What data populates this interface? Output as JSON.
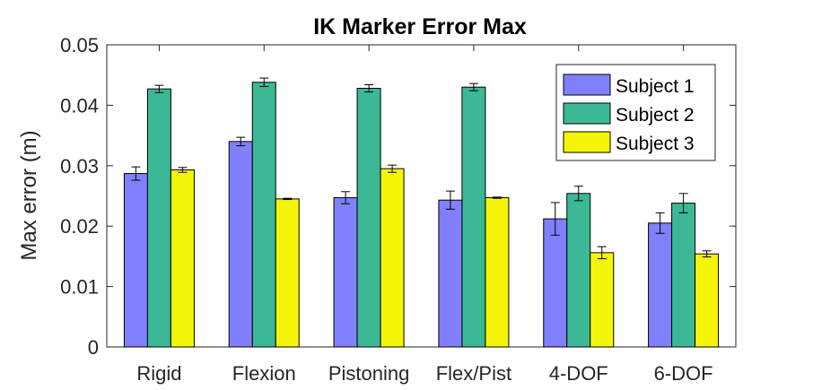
{
  "chart_data": {
    "type": "bar",
    "title": "IK Marker Error Max",
    "xlabel": "",
    "ylabel": "Max error (m)",
    "ylim": [
      0,
      0.05
    ],
    "yticks": [
      "0",
      "0.01",
      "0.02",
      "0.03",
      "0.04",
      "0.05"
    ],
    "categories": [
      "Rigid",
      "Flexion",
      "Pistoning",
      "Flex/Pist",
      "4-DOF",
      "6-DOF"
    ],
    "series": [
      {
        "name": "Subject 1",
        "color": "#8080ff",
        "values": [
          0.0287,
          0.034,
          0.0247,
          0.0243,
          0.0212,
          0.0205
        ],
        "errors": [
          0.0011,
          0.0007,
          0.001,
          0.0015,
          0.0027,
          0.0017
        ]
      },
      {
        "name": "Subject 2",
        "color": "#3cb896",
        "values": [
          0.0427,
          0.0438,
          0.0428,
          0.043,
          0.0254,
          0.0238
        ],
        "errors": [
          0.0006,
          0.0007,
          0.0006,
          0.0006,
          0.0012,
          0.0016
        ]
      },
      {
        "name": "Subject 3",
        "color": "#f5f50a",
        "values": [
          0.0293,
          0.0245,
          0.0295,
          0.0247,
          0.0156,
          0.0154
        ],
        "errors": [
          0.0004,
          0.0001,
          0.0006,
          0.0001,
          0.001,
          0.0005
        ]
      }
    ],
    "legend_position": "top-right",
    "grid": false
  }
}
